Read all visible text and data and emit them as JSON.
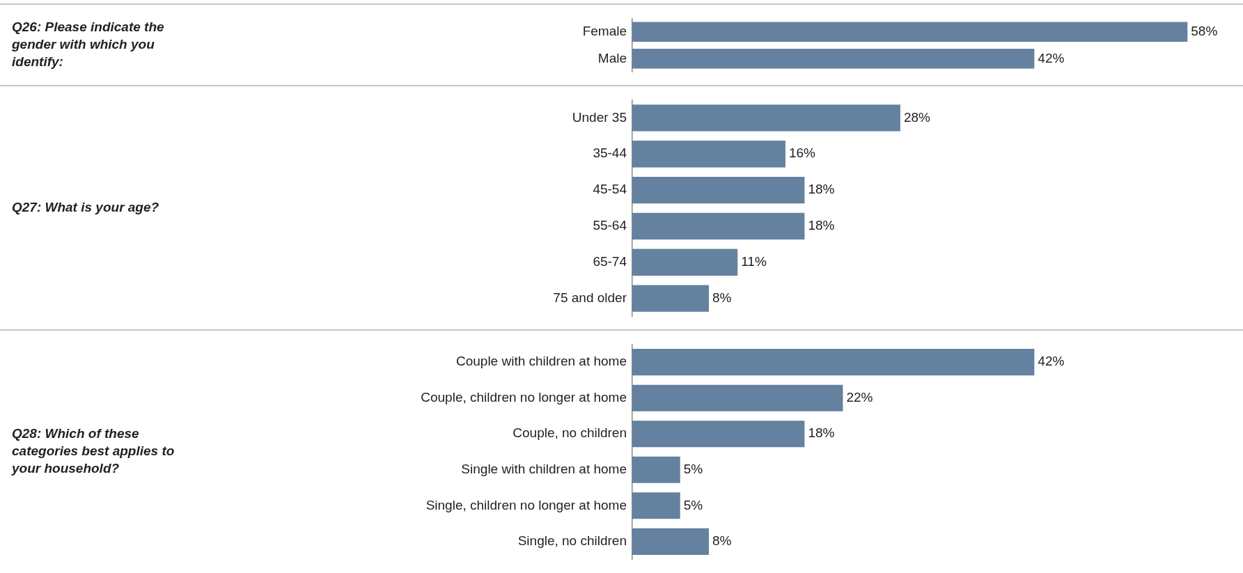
{
  "chart_data": [
    {
      "type": "bar",
      "orientation": "horizontal",
      "ylabel": "Q26: Please indicate the gender with which you identify:",
      "categories": [
        "Female",
        "Male"
      ],
      "values": [
        58,
        42
      ],
      "value_labels": [
        "58%",
        "42%"
      ],
      "color": "#6581a0",
      "tick_labels": "y",
      "grid": false,
      "legend": false
    },
    {
      "type": "bar",
      "orientation": "horizontal",
      "ylabel": "Q27: What is your age?",
      "categories": [
        "Under 35",
        "35-44",
        "45-54",
        "55-64",
        "65-74",
        "75 and older"
      ],
      "values": [
        28,
        16,
        18,
        18,
        11,
        8
      ],
      "value_labels": [
        "28%",
        "16%",
        "18%",
        "18%",
        "11%",
        "8%"
      ],
      "color": "#6581a0",
      "tick_labels": "y",
      "grid": false,
      "legend": false
    },
    {
      "type": "bar",
      "orientation": "horizontal",
      "ylabel": "Q28: Which of these categories best applies to your household?",
      "categories": [
        "Couple with children at home",
        "Couple, children no longer at home",
        "Couple, no children",
        "Single with children at home",
        "Single, children no longer at home",
        "Single, no children"
      ],
      "values": [
        42,
        22,
        18,
        5,
        5,
        8
      ],
      "value_labels": [
        "42%",
        "22%",
        "18%",
        "5%",
        "5%",
        "8%"
      ],
      "color": "#6581a0",
      "tick_labels": "y",
      "grid": false,
      "legend": false
    }
  ]
}
